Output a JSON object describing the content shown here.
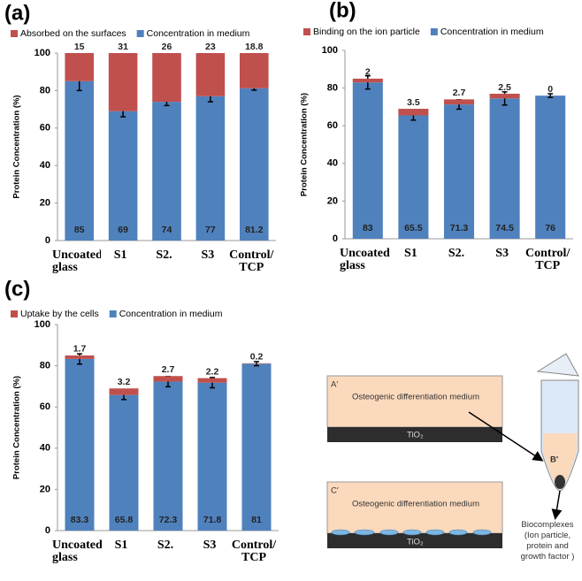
{
  "chart_data": [
    {
      "type": "bar",
      "stacked": true,
      "panel_label": "(a)",
      "ylabel": "Protein Concentration (%)",
      "categories": [
        "Uncoated glass",
        "S1",
        "S2.",
        "S3",
        "Control/ TCP"
      ],
      "series": [
        {
          "name": "Absorbed on the surfaces",
          "color": "#c0504d",
          "values": [
            15,
            31,
            26,
            23,
            18.8
          ]
        },
        {
          "name": "Concentration in medium",
          "color": "#4f81bd",
          "values": [
            85,
            69,
            74,
            77,
            81.2
          ],
          "errors": [
            5,
            3,
            2,
            3,
            1
          ]
        }
      ],
      "ylim": [
        0,
        100
      ],
      "yticks": [
        0,
        20,
        40,
        60,
        80,
        100
      ],
      "grid": false,
      "legend": "top"
    },
    {
      "type": "bar",
      "stacked": true,
      "panel_label": "(b)",
      "ylabel": "Protein Concentration (%)",
      "categories": [
        "Uncoated glass",
        "S1",
        "S2.",
        "S3",
        "Control/ TCP"
      ],
      "series": [
        {
          "name": "Binding on the ion particle",
          "color": "#c0504d",
          "values": [
            2,
            3.5,
            2.7,
            2.5,
            0
          ]
        },
        {
          "name": "Concentration in medium",
          "color": "#4f81bd",
          "values": [
            83,
            65.5,
            71.3,
            74.5,
            76
          ],
          "errors": [
            3.5,
            2.5,
            2.5,
            3.5,
            1
          ]
        }
      ],
      "ylim": [
        0,
        100
      ],
      "yticks": [
        0,
        20,
        40,
        60,
        80,
        100
      ],
      "grid": false,
      "legend": "top"
    },
    {
      "type": "bar",
      "stacked": true,
      "panel_label": "(c)",
      "ylabel": "Protein Concentration (%)",
      "categories": [
        "Uncoated glass",
        "S1",
        "S2.",
        "S3",
        "Control/ TCP"
      ],
      "series": [
        {
          "name": "Uptake by the cells",
          "color": "#c0504d",
          "values": [
            1.7,
            3.2,
            2.7,
            2.2,
            0.2
          ]
        },
        {
          "name": "Concentration in medium",
          "color": "#4f81bd",
          "values": [
            83.3,
            65.8,
            72.3,
            71.8,
            81
          ],
          "errors": [
            2.5,
            2.2,
            2.5,
            2.5,
            1
          ]
        }
      ],
      "ylim": [
        0,
        100
      ],
      "yticks": [
        0,
        20,
        40,
        60,
        80,
        100
      ],
      "grid": false,
      "legend": "top"
    }
  ],
  "diagram": {
    "top_label": "A′",
    "top_medium": "Osteogenic differentiation medium",
    "top_substrate": "TiO₂",
    "tube_label": "B′",
    "bottom_label": "C′",
    "bottom_medium": "Osteogenic differentiation medium",
    "bottom_substrate": "TiO₂",
    "caption": "Biocomplexes (Ion particle, protein and growth factor )"
  }
}
